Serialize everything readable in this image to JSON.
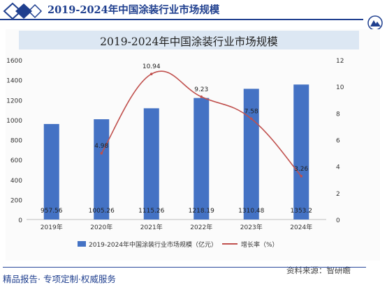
{
  "header": {
    "title": "2019-2024年中国涂装行业市场规模"
  },
  "footer": {
    "tagline": "精品报告· 专项定制·权威服务"
  },
  "source": {
    "text": "资料来源：智研瞻"
  },
  "colors": {
    "brand": "#1f3f8f",
    "bar": "#4472c4",
    "line": "#c0504d",
    "title_band": "#dce7f3"
  },
  "chart_data": {
    "type": "bar",
    "title": "2019-2024年中国涂装行业市场规模",
    "categories": [
      "2019年",
      "2020年",
      "2021年",
      "2022年",
      "2023年",
      "2024年"
    ],
    "series": [
      {
        "name": "2019-2024年中国涂装行业市场规模（亿元）",
        "type": "bar",
        "axis": "left",
        "values": [
          957.56,
          1005.26,
          1115.26,
          1218.19,
          1310.48,
          1353.2
        ],
        "labels": [
          "957.56",
          "1005.26",
          "1115.26",
          "1218.19",
          "1310.48",
          "1353.2"
        ]
      },
      {
        "name": "增长率（%）",
        "type": "line",
        "axis": "right",
        "values": [
          null,
          4.98,
          10.94,
          9.23,
          7.58,
          3.26
        ],
        "labels": [
          "",
          "4.98",
          "10.94",
          "9.23",
          "7.58",
          "3.26"
        ]
      }
    ],
    "y_left": {
      "ylim": [
        0,
        1600
      ],
      "ticks": [
        "0",
        "200",
        "400",
        "600",
        "800",
        "1000",
        "1200",
        "1400",
        "1600"
      ]
    },
    "y_right": {
      "ylim": [
        0,
        12
      ],
      "ticks": [
        "0",
        "2",
        "4",
        "6",
        "8",
        "10",
        "12"
      ]
    },
    "legend_position": "bottom"
  }
}
